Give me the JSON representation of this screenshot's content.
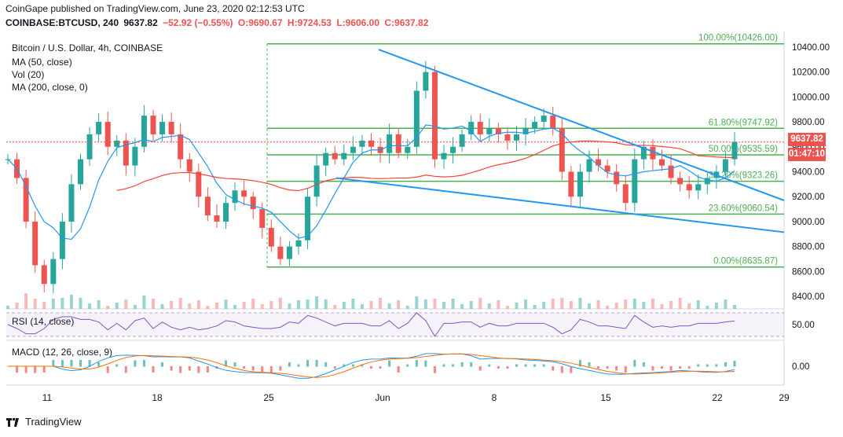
{
  "header": {
    "line1": "CoinGape published on TradingView.com, June 23, 2020 02:12:53 UTC",
    "symbol": "COINBASE:BTCUSD, 240",
    "last": "9637.82",
    "change": "−52.92 (−0.55%)",
    "open": "O:9690.67",
    "high": "H:9724.53",
    "low": "L:9606.00",
    "close": "C:9637.82"
  },
  "legend": {
    "title": "Bitcoin / U.S. Dollar, 4h, COINBASE",
    "ma50": "MA (50, close)",
    "vol": "Vol (20)",
    "ma200": "MA (200, close, 0)",
    "rsi": "RSI (14, close)",
    "macd": "MACD (12, 26, close, 9)"
  },
  "price_tag": {
    "price": "9637.82",
    "countdown": "01:47:10"
  },
  "footer": {
    "brand": "TradingView"
  },
  "colors": {
    "up": "#26a69a",
    "down": "#ef5350",
    "fib": "#4caf50",
    "trend": "#2196f3",
    "ma50": "#2196f3",
    "ma200": "#f44336",
    "rsi": "#7e57c2",
    "macd": "#2196f3",
    "signal": "#ff6d00"
  },
  "chart_data": {
    "type": "candlestick",
    "title": "Bitcoin / U.S. Dollar, 4h, COINBASE",
    "ylim": [
      8300,
      10500
    ],
    "y_ticks": [
      "10400.00",
      "10200.00",
      "10000.00",
      "9800.00",
      "9600.00",
      "9400.00",
      "9200.00",
      "9000.00",
      "8800.00",
      "8600.00",
      "8400.00"
    ],
    "x_ticks": [
      "11",
      "18",
      "25",
      "Jun",
      "8",
      "15",
      "22",
      "29"
    ],
    "close_series": [
      9500,
      9350,
      9000,
      8650,
      8500,
      8700,
      9000,
      9300,
      9500,
      9700,
      9800,
      9600,
      9650,
      9450,
      9600,
      9850,
      9700,
      9800,
      9700,
      9500,
      9400,
      9200,
      9050,
      9000,
      9150,
      9250,
      9200,
      9100,
      8950,
      8800,
      8700,
      8800,
      8850,
      9200,
      9450,
      9550,
      9500,
      9550,
      9600,
      9650,
      9600,
      9550,
      9700,
      9550,
      9600,
      10050,
      10200,
      9500,
      9550,
      9600,
      9700,
      9800,
      9700,
      9750,
      9700,
      9650,
      9700,
      9750,
      9800,
      9850,
      9750,
      9400,
      9200,
      9400,
      9500,
      9450,
      9400,
      9300,
      9150,
      9500,
      9600,
      9500,
      9450,
      9350,
      9300,
      9250,
      9300,
      9350,
      9400,
      9500,
      9640
    ],
    "fib_levels": [
      {
        "label": "0.00%(8635.87)",
        "value": 8635.87
      },
      {
        "label": "23.60%(9060.54)",
        "value": 9060.54
      },
      {
        "label": "38.20%(9323.26)",
        "value": 9323.26
      },
      {
        "label": "50.00%(9535.59)",
        "value": 9535.59
      },
      {
        "label": "61.80%(9747.92)",
        "value": 9747.92
      },
      {
        "label": "100.00%(10426.00)",
        "value": 10426.0
      }
    ],
    "rsi_ticks": [
      "50.00"
    ],
    "macd_ticks": [
      "0.00"
    ]
  }
}
